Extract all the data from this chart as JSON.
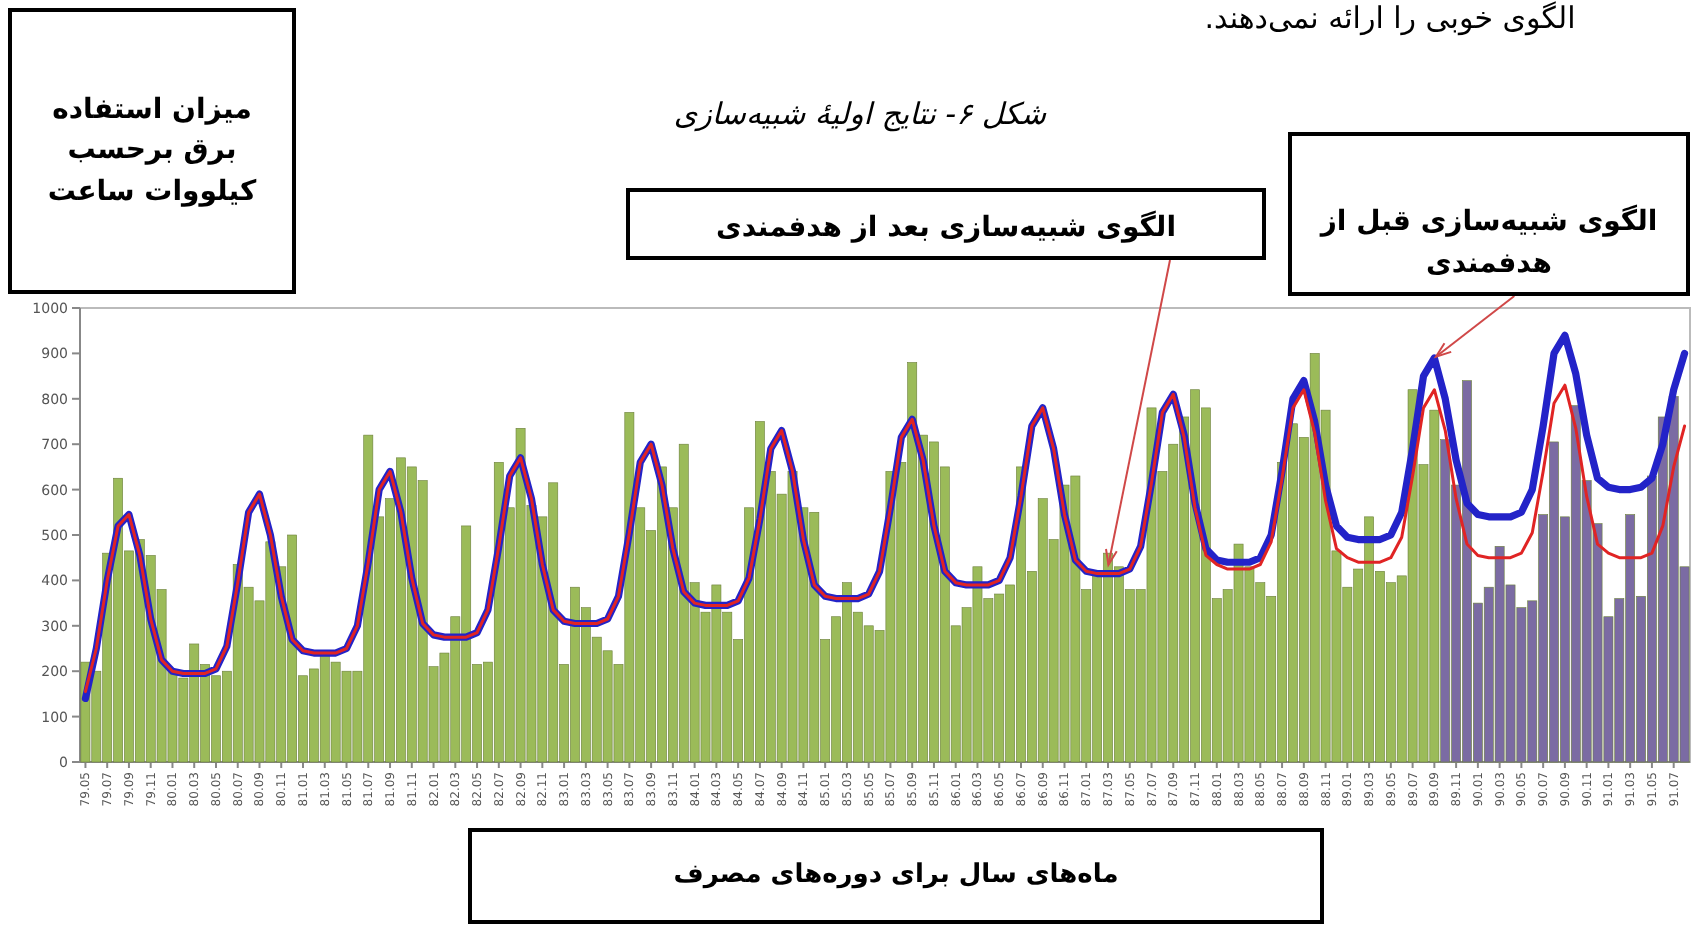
{
  "chart_data": {
    "type": "bar",
    "title": "شکل ۶- نتایج اولیهٔ شبیه‌سازی",
    "xlabel": "ماه‌های سال برای دوره‌های مصرف",
    "ylabel": "میزان استفاده برق برحسب کیلووات ساعت",
    "annotations": [
      "الگوی خوبی را ارائه نمی‌دهند.",
      {
        "text": "الگوی شبیه‌سازی بعد از هدفمندی",
        "x": "87.03",
        "y": 430
      },
      {
        "text": "الگوی شبیه‌سازی قبل از هدفمندی",
        "x": "89.09",
        "y": 890
      }
    ],
    "categories": [
      "79.05",
      null,
      "79.07",
      null,
      "79.09",
      null,
      "79.11",
      null,
      "80.01",
      null,
      "80.03",
      null,
      "80.05",
      null,
      "80.07",
      null,
      "80.09",
      null,
      "80.11",
      null,
      "81.01",
      null,
      "81.03",
      null,
      "81.05",
      null,
      "81.07",
      null,
      "81.09",
      null,
      "81.11",
      null,
      "82.01",
      null,
      "82.03",
      null,
      "82.05",
      null,
      "82.07",
      null,
      "82.09",
      null,
      "82.11",
      null,
      "83.01",
      null,
      "83.03",
      null,
      "83.05",
      null,
      "83.07",
      null,
      "83.09",
      null,
      "83.11",
      null,
      "84.01",
      null,
      "84.03",
      null,
      "84.05",
      null,
      "84.07",
      null,
      "84.09",
      null,
      "84.11",
      null,
      "85.01",
      null,
      "85.03",
      null,
      "85.05",
      null,
      "85.07",
      null,
      "85.09",
      null,
      "85.11",
      null,
      "86.01",
      null,
      "86.03",
      null,
      "86.05",
      null,
      "86.07",
      null,
      "86.09",
      null,
      "86.11",
      null,
      "87.01",
      null,
      "87.03",
      null,
      "87.05",
      null,
      "87.07",
      null,
      "87.09",
      null,
      "87.11",
      null,
      "88.01",
      null,
      "88.03",
      null,
      "88.05",
      null,
      "88.07",
      null,
      "88.09",
      null,
      "88.11",
      null,
      "89.01",
      null,
      "89.03",
      null,
      "89.05",
      null,
      "89.07",
      null,
      "89.09",
      null,
      "89.11",
      null,
      "90.01",
      null,
      "90.03",
      null,
      "90.05",
      null,
      "90.07",
      null,
      "90.09",
      null,
      "90.11",
      null,
      "91.01",
      null,
      "91.03",
      null,
      "91.05",
      null,
      "91.07",
      null
    ],
    "series": [
      {
        "values": [
          220,
          200,
          460,
          625,
          465,
          490,
          455,
          380,
          200,
          185,
          260,
          215,
          190,
          200,
          435,
          385,
          355,
          485,
          430,
          500,
          190,
          205,
          235,
          220,
          200,
          200,
          720,
          540,
          580,
          670,
          650,
          620,
          210,
          240,
          320,
          520,
          215,
          220,
          660,
          560,
          735,
          565,
          540,
          615,
          215,
          385,
          340,
          275,
          245,
          215,
          770,
          560,
          510,
          650,
          560,
          700,
          395,
          330,
          390,
          330,
          270,
          560,
          750,
          640,
          590,
          640,
          560,
          550,
          270,
          320,
          395,
          330,
          300,
          290,
          640,
          660,
          880,
          720,
          705,
          650,
          300,
          340,
          430,
          360,
          370,
          390,
          650,
          420,
          580,
          490,
          610,
          630,
          380,
          420,
          460,
          430,
          380,
          380,
          780,
          640,
          700,
          760,
          820,
          780,
          360,
          380,
          480,
          430,
          395,
          365,
          660,
          745,
          715,
          900,
          775,
          465,
          385,
          425,
          540,
          420,
          395,
          410,
          820,
          655,
          775,
          710,
          610,
          840,
          350,
          385,
          475,
          390,
          340,
          355,
          545,
          705,
          540,
          785,
          620,
          525,
          320,
          360,
          545,
          365,
          630,
          760,
          805,
          430
        ],
        "colors": [
          "#9bbb59",
          "#9bbb59",
          "#9bbb59",
          "#9bbb59",
          "#9bbb59",
          "#9bbb59",
          "#9bbb59",
          "#9bbb59",
          "#9bbb59",
          "#9bbb59",
          "#9bbb59",
          "#9bbb59",
          "#9bbb59",
          "#9bbb59",
          "#9bbb59",
          "#9bbb59",
          "#9bbb59",
          "#9bbb59",
          "#9bbb59",
          "#9bbb59",
          "#9bbb59",
          "#9bbb59",
          "#9bbb59",
          "#9bbb59",
          "#9bbb59",
          "#9bbb59",
          "#9bbb59",
          "#9bbb59",
          "#9bbb59",
          "#9bbb59",
          "#9bbb59",
          "#9bbb59",
          "#9bbb59",
          "#9bbb59",
          "#9bbb59",
          "#9bbb59",
          "#9bbb59",
          "#9bbb59",
          "#9bbb59",
          "#9bbb59",
          "#9bbb59",
          "#9bbb59",
          "#9bbb59",
          "#9bbb59",
          "#9bbb59",
          "#9bbb59",
          "#9bbb59",
          "#9bbb59",
          "#9bbb59",
          "#9bbb59",
          "#9bbb59",
          "#9bbb59",
          "#9bbb59",
          "#9bbb59",
          "#9bbb59",
          "#9bbb59",
          "#9bbb59",
          "#9bbb59",
          "#9bbb59",
          "#9bbb59",
          "#9bbb59",
          "#9bbb59",
          "#9bbb59",
          "#9bbb59",
          "#9bbb59",
          "#9bbb59",
          "#9bbb59",
          "#9bbb59",
          "#9bbb59",
          "#9bbb59",
          "#9bbb59",
          "#9bbb59",
          "#9bbb59",
          "#9bbb59",
          "#9bbb59",
          "#9bbb59",
          "#9bbb59",
          "#9bbb59",
          "#9bbb59",
          "#9bbb59",
          "#9bbb59",
          "#9bbb59",
          "#9bbb59",
          "#9bbb59",
          "#9bbb59",
          "#9bbb59",
          "#9bbb59",
          "#9bbb59",
          "#9bbb59",
          "#9bbb59",
          "#9bbb59",
          "#9bbb59",
          "#9bbb59",
          "#9bbb59",
          "#9bbb59",
          "#9bbb59",
          "#9bbb59",
          "#9bbb59",
          "#9bbb59",
          "#9bbb59",
          "#9bbb59",
          "#9bbb59",
          "#9bbb59",
          "#9bbb59",
          "#9bbb59",
          "#9bbb59",
          "#9bbb59",
          "#9bbb59",
          "#9bbb59",
          "#9bbb59",
          "#9bbb59",
          "#9bbb59",
          "#9bbb59",
          "#9bbb59",
          "#9bbb59",
          "#9bbb59",
          "#9bbb59",
          "#9bbb59",
          "#9bbb59",
          "#9bbb59",
          "#9bbb59",
          "#9bbb59",
          "#9bbb59",
          "#9bbb59",
          "#9bbb59",
          "#7b6ba3",
          "#7b6ba3",
          "#7b6ba3",
          "#7b6ba3",
          "#7b6ba3",
          "#7b6ba3",
          "#7b6ba3",
          "#7b6ba3",
          "#7b6ba3",
          "#7b6ba3",
          "#7b6ba3",
          "#7b6ba3",
          "#7b6ba3",
          "#7b6ba3",
          "#7b6ba3",
          "#7b6ba3",
          "#7b6ba3",
          "#7b6ba3",
          "#7b6ba3",
          "#7b6ba3",
          "#7b6ba3",
          "#7b6ba3",
          "#7b6ba3"
        ]
      },
      {
        "type": "line",
        "color": "#2323c8",
        "values": [
          140,
          250,
          400,
          520,
          545,
          455,
          315,
          225,
          200,
          195,
          195,
          195,
          205,
          255,
          395,
          550,
          590,
          500,
          365,
          270,
          245,
          240,
          240,
          240,
          250,
          300,
          440,
          600,
          640,
          550,
          405,
          305,
          280,
          275,
          275,
          275,
          285,
          335,
          475,
          630,
          670,
          580,
          435,
          335,
          310,
          305,
          305,
          305,
          315,
          365,
          505,
          660,
          700,
          610,
          470,
          375,
          350,
          345,
          345,
          345,
          355,
          405,
          535,
          690,
          730,
          640,
          490,
          390,
          365,
          360,
          360,
          360,
          370,
          420,
          560,
          715,
          755,
          665,
          520,
          420,
          395,
          390,
          390,
          390,
          400,
          450,
          585,
          740,
          780,
          690,
          545,
          445,
          420,
          415,
          415,
          415,
          425,
          475,
          615,
          770,
          810,
          720,
          570,
          470,
          445,
          440,
          440,
          440,
          450,
          500,
          640,
          800,
          840,
          750,
          610,
          520,
          495,
          490,
          490,
          490,
          500,
          550,
          690,
          850,
          890,
          800,
          665,
          570,
          545,
          540,
          540,
          540,
          550,
          600,
          740,
          900,
          940,
          855,
          720,
          625,
          605,
          600,
          600,
          605,
          625,
          700,
          820,
          900
        ]
      },
      {
        "type": "line",
        "color": "#e02424",
        "values": [
          155,
          250,
          400,
          520,
          545,
          455,
          315,
          225,
          200,
          195,
          195,
          195,
          205,
          255,
          395,
          550,
          590,
          500,
          365,
          270,
          245,
          240,
          240,
          240,
          250,
          300,
          440,
          600,
          640,
          550,
          405,
          305,
          280,
          275,
          275,
          275,
          285,
          335,
          475,
          630,
          670,
          580,
          435,
          335,
          310,
          305,
          305,
          305,
          315,
          365,
          505,
          660,
          700,
          610,
          470,
          375,
          350,
          345,
          345,
          345,
          355,
          405,
          535,
          690,
          730,
          640,
          490,
          390,
          365,
          360,
          360,
          360,
          370,
          420,
          560,
          715,
          755,
          665,
          520,
          420,
          395,
          390,
          390,
          390,
          400,
          450,
          585,
          740,
          780,
          690,
          545,
          445,
          420,
          415,
          415,
          415,
          425,
          475,
          615,
          770,
          810,
          715,
          560,
          455,
          435,
          425,
          425,
          425,
          435,
          485,
          625,
          780,
          820,
          725,
          575,
          470,
          450,
          440,
          440,
          440,
          450,
          495,
          630,
          780,
          820,
          730,
          580,
          480,
          455,
          450,
          450,
          450,
          460,
          505,
          640,
          790,
          830,
          735,
          585,
          480,
          460,
          450,
          450,
          450,
          460,
          520,
          650,
          740
        ]
      }
    ],
    "ylim": [
      0,
      1000
    ],
    "yticks": [
      0,
      100,
      200,
      300,
      400,
      500,
      600,
      700,
      800,
      900,
      1000
    ]
  }
}
